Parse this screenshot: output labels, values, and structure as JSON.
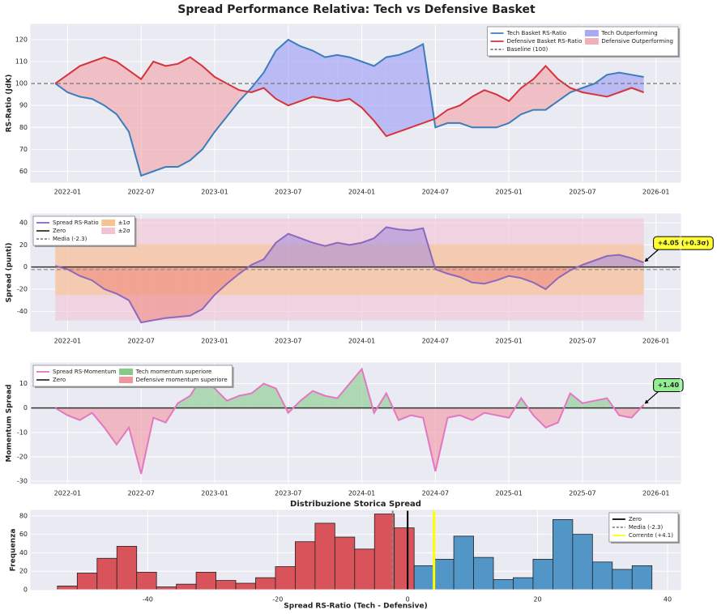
{
  "title": "Spread Performance Relativa: Tech vs Defensive Basket",
  "chart_data": [
    {
      "type": "line",
      "ylabel": "RS-Ratio (JdK)",
      "x": [
        "2021-12",
        "2022-01",
        "2022-02",
        "2022-03",
        "2022-04",
        "2022-05",
        "2022-06",
        "2022-07",
        "2022-08",
        "2022-09",
        "2022-10",
        "2022-11",
        "2022-12",
        "2023-01",
        "2023-02",
        "2023-03",
        "2023-04",
        "2023-05",
        "2023-06",
        "2023-07",
        "2023-08",
        "2023-09",
        "2023-10",
        "2023-11",
        "2023-12",
        "2024-01",
        "2024-02",
        "2024-03",
        "2024-04",
        "2024-05",
        "2024-06",
        "2024-07",
        "2024-08",
        "2024-09",
        "2024-10",
        "2024-11",
        "2024-12",
        "2025-01",
        "2025-02",
        "2025-03",
        "2025-04",
        "2025-05",
        "2025-06",
        "2025-07",
        "2025-08",
        "2025-09",
        "2025-10",
        "2025-11",
        "2025-12"
      ],
      "series": [
        {
          "name": "Tech Basket RS-Ratio",
          "color": "#3b7dbd",
          "values": [
            100,
            96,
            94,
            93,
            90,
            86,
            78,
            58,
            60,
            62,
            62,
            65,
            70,
            78,
            85,
            92,
            98,
            105,
            115,
            120,
            117,
            115,
            112,
            113,
            112,
            110,
            108,
            112,
            113,
            115,
            118,
            80,
            82,
            82,
            80,
            80,
            80,
            82,
            86,
            88,
            88,
            92,
            96,
            98,
            100,
            104,
            105,
            104,
            103
          ]
        },
        {
          "name": "Defensive Basket RS-Ratio",
          "color": "#d6333a",
          "values": [
            100,
            104,
            108,
            110,
            112,
            110,
            106,
            102,
            110,
            108,
            109,
            112,
            108,
            103,
            100,
            97,
            96,
            98,
            93,
            90,
            92,
            94,
            93,
            92,
            93,
            89,
            83,
            76,
            78,
            80,
            82,
            84,
            88,
            90,
            94,
            97,
            95,
            92,
            98,
            102,
            108,
            102,
            98,
            96,
            95,
            94,
            96,
            98,
            96
          ]
        }
      ],
      "baseline": {
        "value": 100,
        "label": "Baseline (100)",
        "color": "#777777"
      },
      "fills": [
        {
          "name": "Tech Outperforming",
          "color": "#a9a9f5"
        },
        {
          "name": "Defensive Outperforming",
          "color": "#f0b0b5"
        }
      ],
      "xlim": [
        "2021-10",
        "2026-03"
      ],
      "xticks": [
        "2022-01",
        "2022-07",
        "2023-01",
        "2023-07",
        "2024-01",
        "2024-07",
        "2025-01",
        "2025-07",
        "2026-01"
      ],
      "ylim": [
        55,
        127
      ],
      "yticks": [
        60,
        70,
        80,
        90,
        100,
        110,
        120
      ],
      "grid": true,
      "legend": "upper right",
      "legend_columns": 2
    },
    {
      "type": "area",
      "ylabel": "Spread (punti)",
      "x": [
        "2021-12",
        "2022-01",
        "2022-02",
        "2022-03",
        "2022-04",
        "2022-05",
        "2022-06",
        "2022-07",
        "2022-08",
        "2022-09",
        "2022-10",
        "2022-11",
        "2022-12",
        "2023-01",
        "2023-02",
        "2023-03",
        "2023-04",
        "2023-05",
        "2023-06",
        "2023-07",
        "2023-08",
        "2023-09",
        "2023-10",
        "2023-11",
        "2023-12",
        "2024-01",
        "2024-02",
        "2024-03",
        "2024-04",
        "2024-05",
        "2024-06",
        "2024-07",
        "2024-08",
        "2024-09",
        "2024-10",
        "2024-11",
        "2024-12",
        "2025-01",
        "2025-02",
        "2025-03",
        "2025-04",
        "2025-05",
        "2025-06",
        "2025-07",
        "2025-08",
        "2025-09",
        "2025-10",
        "2025-11",
        "2025-12"
      ],
      "series": [
        {
          "name": "Spread RS-Ratio",
          "color": "#8e67bf",
          "values": [
            1,
            -2,
            -8,
            -12,
            -20,
            -24,
            -30,
            -50,
            -48,
            -46,
            -45,
            -44,
            -38,
            -25,
            -15,
            -6,
            2,
            7,
            22,
            30,
            26,
            22,
            19,
            22,
            20,
            22,
            26,
            36,
            34,
            33,
            35,
            -2,
            -6,
            -9,
            -14,
            -15,
            -12,
            -8,
            -10,
            -14,
            -20,
            -10,
            -3,
            2,
            6,
            10,
            11,
            8,
            4.05
          ]
        }
      ],
      "fill_above": "#a68fd8",
      "fill_below": "#f08a80",
      "zero": {
        "value": 0,
        "label": "Zero",
        "color": "#333333"
      },
      "mean": {
        "value": -2.3,
        "label": "Media (-2.3)",
        "color": "#888888"
      },
      "bands": [
        {
          "label": "±1σ",
          "range": [
            -25.3,
            20.7
          ],
          "color": "#f7c48f"
        },
        {
          "label": "±2σ",
          "range": [
            -48.3,
            43.7
          ],
          "color": "#f3c3d3"
        }
      ],
      "annotation": {
        "text": "+4.05 (+0.3σ)",
        "color": "#ffff33"
      },
      "xlim": [
        "2021-10",
        "2026-03"
      ],
      "xticks": [
        "2022-01",
        "2022-07",
        "2023-01",
        "2023-07",
        "2024-01",
        "2024-07",
        "2025-01",
        "2025-07",
        "2026-01"
      ],
      "ylim": [
        -58,
        48
      ],
      "yticks": [
        -40,
        -20,
        0,
        20,
        40
      ],
      "grid": true,
      "legend": "upper left",
      "legend_columns": 2
    },
    {
      "type": "area",
      "ylabel": "Momentum Spread",
      "x": [
        "2021-12",
        "2022-01",
        "2022-02",
        "2022-03",
        "2022-04",
        "2022-05",
        "2022-06",
        "2022-07",
        "2022-08",
        "2022-09",
        "2022-10",
        "2022-11",
        "2022-12",
        "2023-01",
        "2023-02",
        "2023-03",
        "2023-04",
        "2023-05",
        "2023-06",
        "2023-07",
        "2023-08",
        "2023-09",
        "2023-10",
        "2023-11",
        "2023-12",
        "2024-01",
        "2024-02",
        "2024-03",
        "2024-04",
        "2024-05",
        "2024-06",
        "2024-07",
        "2024-08",
        "2024-09",
        "2024-10",
        "2024-11",
        "2024-12",
        "2025-01",
        "2025-02",
        "2025-03",
        "2025-04",
        "2025-05",
        "2025-06",
        "2025-07",
        "2025-08",
        "2025-09",
        "2025-10",
        "2025-11",
        "2025-12"
      ],
      "series": [
        {
          "name": "Spread RS-Momentum",
          "color": "#e377c2",
          "values": [
            0,
            -3,
            -5,
            -2,
            -8,
            -15,
            -8,
            -27,
            -4,
            -6,
            2,
            5,
            13,
            8,
            3,
            5,
            6,
            10,
            8,
            -2,
            3,
            7,
            5,
            4,
            10,
            16,
            -2,
            6,
            -5,
            -3,
            -4,
            -26,
            -4,
            -3,
            -5,
            -2,
            -3,
            -4,
            4,
            -3,
            -8,
            -6,
            6,
            2,
            3,
            4,
            -3,
            -4,
            1.4
          ]
        }
      ],
      "zero": {
        "value": 0,
        "label": "Zero",
        "color": "#333333"
      },
      "fills": [
        {
          "name": "Tech momentum superiore",
          "color": "#86c98a"
        },
        {
          "name": "Defensive momentum superiore",
          "color": "#f094a0"
        }
      ],
      "annotation": {
        "text": "+1.40",
        "color": "#90ee90"
      },
      "xlim": [
        "2021-10",
        "2026-03"
      ],
      "xticks": [
        "2022-01",
        "2022-07",
        "2023-01",
        "2023-07",
        "2024-01",
        "2024-07",
        "2025-01",
        "2025-07",
        "2026-01"
      ],
      "ylim": [
        -31,
        18.5
      ],
      "yticks": [
        -30,
        -20,
        -10,
        0,
        10
      ],
      "grid": true,
      "legend": "upper left",
      "legend_columns": 2
    },
    {
      "type": "histogram",
      "title": "Distribuzione Storica Spread",
      "xlabel": "Spread RS-Ratio (Tech - Defensive)",
      "ylabel": "Frequenza",
      "bins": [
        -53.9,
        -50.85,
        -47.8,
        -44.75,
        -41.7,
        -38.65,
        -35.6,
        -32.55,
        -29.5,
        -26.45,
        -23.4,
        -20.35,
        -17.3,
        -14.25,
        -11.2,
        -8.15,
        -5.1,
        -2.05,
        1.0,
        4.05,
        7.1,
        10.15,
        13.2,
        16.25,
        19.3,
        22.35,
        25.4,
        28.45,
        31.5,
        34.55,
        37.6
      ],
      "counts": [
        4,
        18,
        34,
        47,
        19,
        3,
        6,
        19,
        10,
        7,
        13,
        25,
        52,
        72,
        57,
        44,
        82,
        67,
        26,
        33,
        58,
        35,
        11,
        13,
        33,
        76,
        60,
        30,
        22,
        26
      ],
      "color_negative": "#d9545a",
      "color_positive": "#5296c8",
      "vlines": [
        {
          "value": 0,
          "label": "Zero",
          "color": "#000000"
        },
        {
          "value": -2.3,
          "label": "Media (-2.3)",
          "color": "#888888",
          "dash": true
        },
        {
          "value": 4.05,
          "label": "Corrente (+4.1)",
          "color": "#ffff00"
        }
      ],
      "xlim": [
        -58,
        42
      ],
      "xticks": [
        -40,
        -20,
        0,
        20,
        40
      ],
      "ylim": [
        0,
        86
      ],
      "yticks": [
        0,
        20,
        40,
        60,
        80
      ],
      "grid": true,
      "legend": "upper right",
      "legend_columns": 1
    }
  ]
}
